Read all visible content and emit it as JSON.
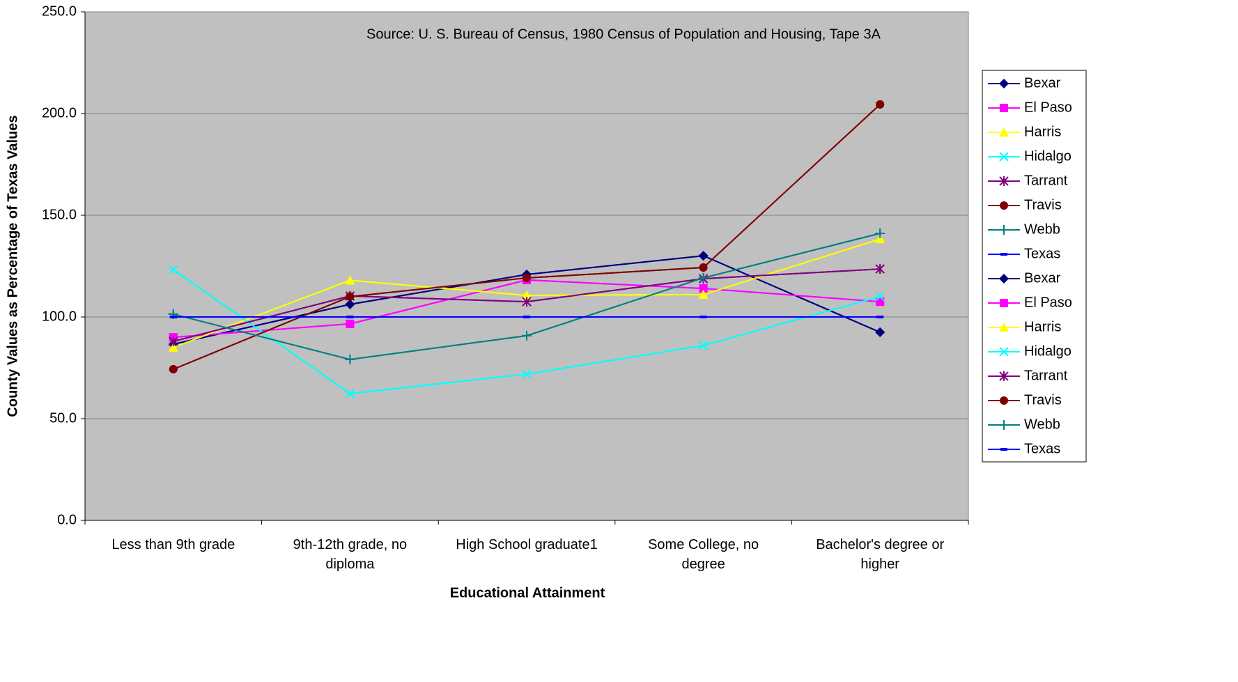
{
  "chart_data": {
    "type": "line",
    "y_label": "County Values as Percentage of Texas Values",
    "x_label": "Educational Attainment",
    "annotation": "Source: U. S. Bureau of Census, 1980 Census of Population and Housing, Tape 3A",
    "categories": [
      "Less than 9th grade",
      "9th-12th grade, no\ndiploma",
      "High School graduate1",
      "Some College, no\ndegree",
      "Bachelor's degree or\nhigher"
    ],
    "ylim": [
      0,
      250
    ],
    "yticks": [
      {
        "value": 0,
        "label": "0.0"
      },
      {
        "value": 50,
        "label": "50.0"
      },
      {
        "value": 100,
        "label": "100.0"
      },
      {
        "value": 150,
        "label": "150.0"
      },
      {
        "value": 200,
        "label": "200.0"
      },
      {
        "value": 250,
        "label": "250.0"
      }
    ],
    "grid": true,
    "legend": "right",
    "series": [
      {
        "name": "Bexar",
        "color": "#000080",
        "marker": "diamond",
        "values": [
          86.6,
          106.2,
          120.9,
          130.1,
          92.5
        ]
      },
      {
        "name": "El Paso",
        "color": "#ff00ff",
        "marker": "square",
        "values": [
          90.0,
          96.6,
          118.2,
          114.0,
          107.5
        ]
      },
      {
        "name": "Harris",
        "color": "#ffff00",
        "marker": "triangle",
        "values": [
          85.0,
          118.0,
          110.6,
          111.0,
          138.3
        ]
      },
      {
        "name": "Hidalgo",
        "color": "#00ffff",
        "marker": "x",
        "values": [
          123.3,
          62.3,
          71.9,
          86.0,
          110.0
        ]
      },
      {
        "name": "Tarrant",
        "color": "#800080",
        "marker": "asterisk",
        "values": [
          88.0,
          110.3,
          107.5,
          118.8,
          123.6
        ]
      },
      {
        "name": "Travis",
        "color": "#800000",
        "marker": "circle",
        "values": [
          74.3,
          110.0,
          119.2,
          124.3,
          204.5
        ]
      },
      {
        "name": "Webb",
        "color": "#008080",
        "marker": "plus",
        "values": [
          101.4,
          79.1,
          90.8,
          119.2,
          141.1
        ]
      },
      {
        "name": "Texas",
        "color": "#0000ff",
        "marker": "dash",
        "values": [
          100,
          100,
          100,
          100,
          100
        ]
      },
      {
        "name": "Bexar",
        "color": "#000080",
        "marker": "diamond",
        "values": [
          86.6,
          106.2,
          120.9,
          130.1,
          92.5
        ]
      },
      {
        "name": "El Paso",
        "color": "#ff00ff",
        "marker": "square",
        "values": [
          90.0,
          96.6,
          118.2,
          114.0,
          107.5
        ]
      },
      {
        "name": "Harris",
        "color": "#ffff00",
        "marker": "triangle",
        "values": [
          85.0,
          118.0,
          110.6,
          111.0,
          138.3
        ]
      },
      {
        "name": "Hidalgo",
        "color": "#00ffff",
        "marker": "x",
        "values": [
          123.3,
          62.3,
          71.9,
          86.0,
          110.0
        ]
      },
      {
        "name": "Tarrant",
        "color": "#800080",
        "marker": "asterisk",
        "values": [
          88.0,
          110.3,
          107.5,
          118.8,
          123.6
        ]
      },
      {
        "name": "Travis",
        "color": "#800000",
        "marker": "circle",
        "values": [
          74.3,
          110.0,
          119.2,
          124.3,
          204.5
        ]
      },
      {
        "name": "Webb",
        "color": "#008080",
        "marker": "plus",
        "values": [
          101.4,
          79.1,
          90.8,
          119.2,
          141.1
        ]
      },
      {
        "name": "Texas",
        "color": "#0000ff",
        "marker": "dash",
        "values": [
          100,
          100,
          100,
          100,
          100
        ]
      }
    ]
  }
}
